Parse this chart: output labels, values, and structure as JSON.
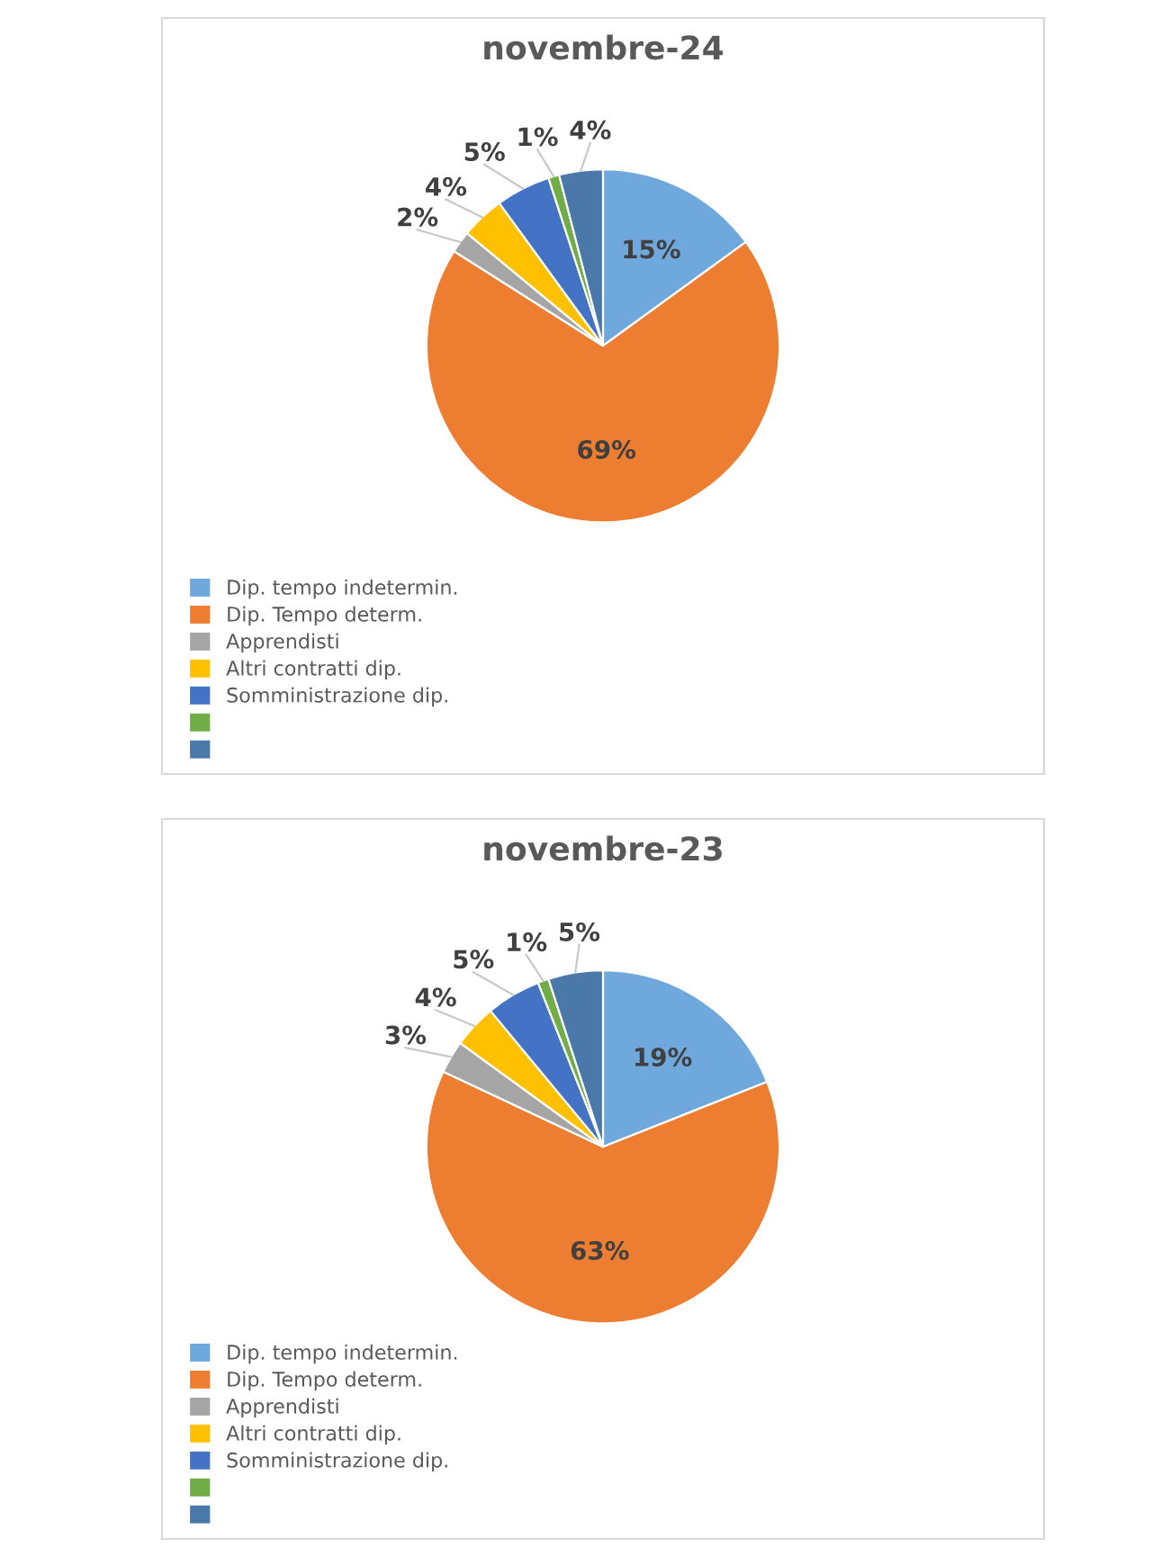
{
  "chart_data": [
    {
      "type": "pie",
      "title": "novembre-24",
      "categories": [
        "Dip. tempo indetermin.",
        "Dip. Tempo determ.",
        "Apprendisti",
        "Altri contratti dip.",
        "Somministrazione dip.",
        null,
        null
      ],
      "values": [
        15,
        69,
        2,
        4,
        5,
        1,
        4
      ],
      "value_labels": [
        "15%",
        "69%",
        "2%",
        "4%",
        "5%",
        "1%",
        "4%"
      ],
      "colors": [
        "#6fa8dc",
        "#ed7d31",
        "#a5a5a5",
        "#ffc000",
        "#4472c4",
        "#70ad47",
        "#4a78a8"
      ],
      "legend": "bottom left"
    },
    {
      "type": "pie",
      "title": "novembre-23",
      "categories": [
        "Dip. tempo indetermin.",
        "Dip. Tempo determ.",
        "Apprendisti",
        "Altri contratti dip.",
        "Somministrazione dip.",
        null,
        null
      ],
      "values": [
        19,
        63,
        3,
        4,
        5,
        1,
        5
      ],
      "value_labels": [
        "19%",
        "63%",
        "3%",
        "4%",
        "5%",
        "1%",
        "5%"
      ],
      "colors": [
        "#6fa8dc",
        "#ed7d31",
        "#a5a5a5",
        "#ffc000",
        "#4472c4",
        "#70ad47",
        "#4a78a8"
      ],
      "legend": "bottom left"
    }
  ]
}
